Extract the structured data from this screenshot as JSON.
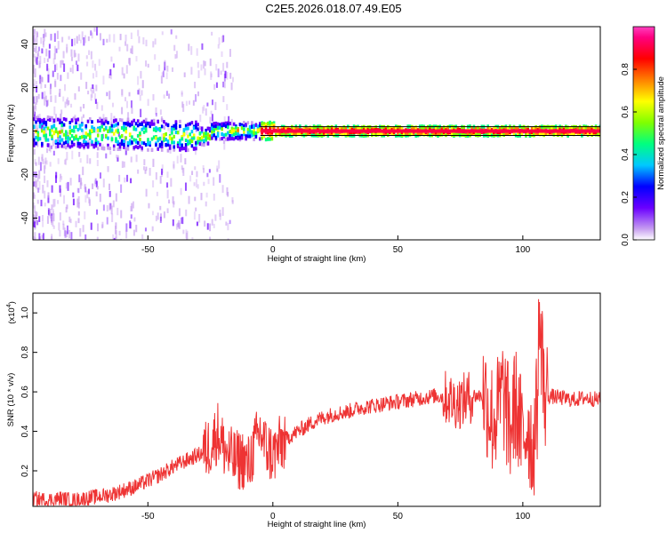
{
  "title": "C2E5.2026.018.07.49.E05",
  "chart_data": [
    {
      "type": "heatmap",
      "xlabel": "Height of straight line (km)",
      "ylabel": "Frequency (Hz)",
      "xlim": [
        -96,
        131
      ],
      "ylim": [
        -50,
        48
      ],
      "xticks": [
        -50,
        0,
        50,
        100
      ],
      "yticks": [
        -40,
        -20,
        0,
        20,
        40
      ],
      "colorbar": {
        "label": "Normalized spectral amplitude",
        "range": [
          0,
          1
        ],
        "ticks": [
          "0.0",
          "0.2",
          "0.4",
          "0.6",
          "0.8"
        ],
        "tick_values": [
          0,
          0.2,
          0.4,
          0.6,
          0.8
        ],
        "colors": [
          "#ffffff",
          "#c8a0f0",
          "#6a00ff",
          "#0000ff",
          "#00c8ff",
          "#00ff80",
          "#80ff00",
          "#ffff00",
          "#ff8000",
          "#ff0000",
          "#ff0080",
          "#ff40c0"
        ]
      },
      "horizontal_lines_hz": [
        2,
        -2
      ]
    },
    {
      "type": "line",
      "xlabel": "Height of straight line (km)",
      "ylabel": "SNR (10 * v/v)",
      "multiplier": "(x10",
      "multiplier_exp": "4",
      "multiplier_close": ")",
      "xlim": [
        -96,
        131
      ],
      "ylim": [
        0.02,
        1.1
      ],
      "xticks": [
        -50,
        0,
        50,
        100
      ],
      "yticks": [
        0.2,
        0.4,
        0.6,
        0.8,
        1
      ],
      "ytick_labels": [
        "0.2",
        "0.4",
        "0.6",
        "0.8",
        "1.0"
      ],
      "color": "#ee3333",
      "series": [
        {
          "x": [
            -96,
            -90,
            -85,
            -80,
            -75,
            -70,
            -65,
            -60,
            -55,
            -50,
            -45,
            -40,
            -35,
            -30,
            -27,
            -24,
            -22,
            -20,
            -18,
            -15,
            -12,
            -10,
            -8,
            -5,
            -3,
            0,
            5,
            10,
            15,
            20,
            25,
            30,
            35,
            40,
            45,
            50,
            55,
            60,
            65,
            70,
            72,
            75,
            78,
            80,
            85,
            88,
            90,
            92,
            95,
            97,
            100,
            102,
            104,
            106,
            108,
            110,
            115,
            120,
            125,
            131
          ],
          "y": [
            0.06,
            0.05,
            0.06,
            0.05,
            0.06,
            0.07,
            0.08,
            0.1,
            0.12,
            0.15,
            0.18,
            0.22,
            0.25,
            0.28,
            0.3,
            0.35,
            0.4,
            0.33,
            0.28,
            0.25,
            0.26,
            0.22,
            0.3,
            0.4,
            0.32,
            0.28,
            0.36,
            0.4,
            0.44,
            0.47,
            0.49,
            0.5,
            0.52,
            0.53,
            0.54,
            0.55,
            0.56,
            0.57,
            0.58,
            0.57,
            0.55,
            0.55,
            0.57,
            0.58,
            0.58,
            0.45,
            0.5,
            0.6,
            0.4,
            0.55,
            0.35,
            0.45,
            0.3,
            0.55,
            0.58,
            0.58,
            0.57,
            0.56,
            0.57,
            0.56
          ]
        }
      ]
    }
  ]
}
